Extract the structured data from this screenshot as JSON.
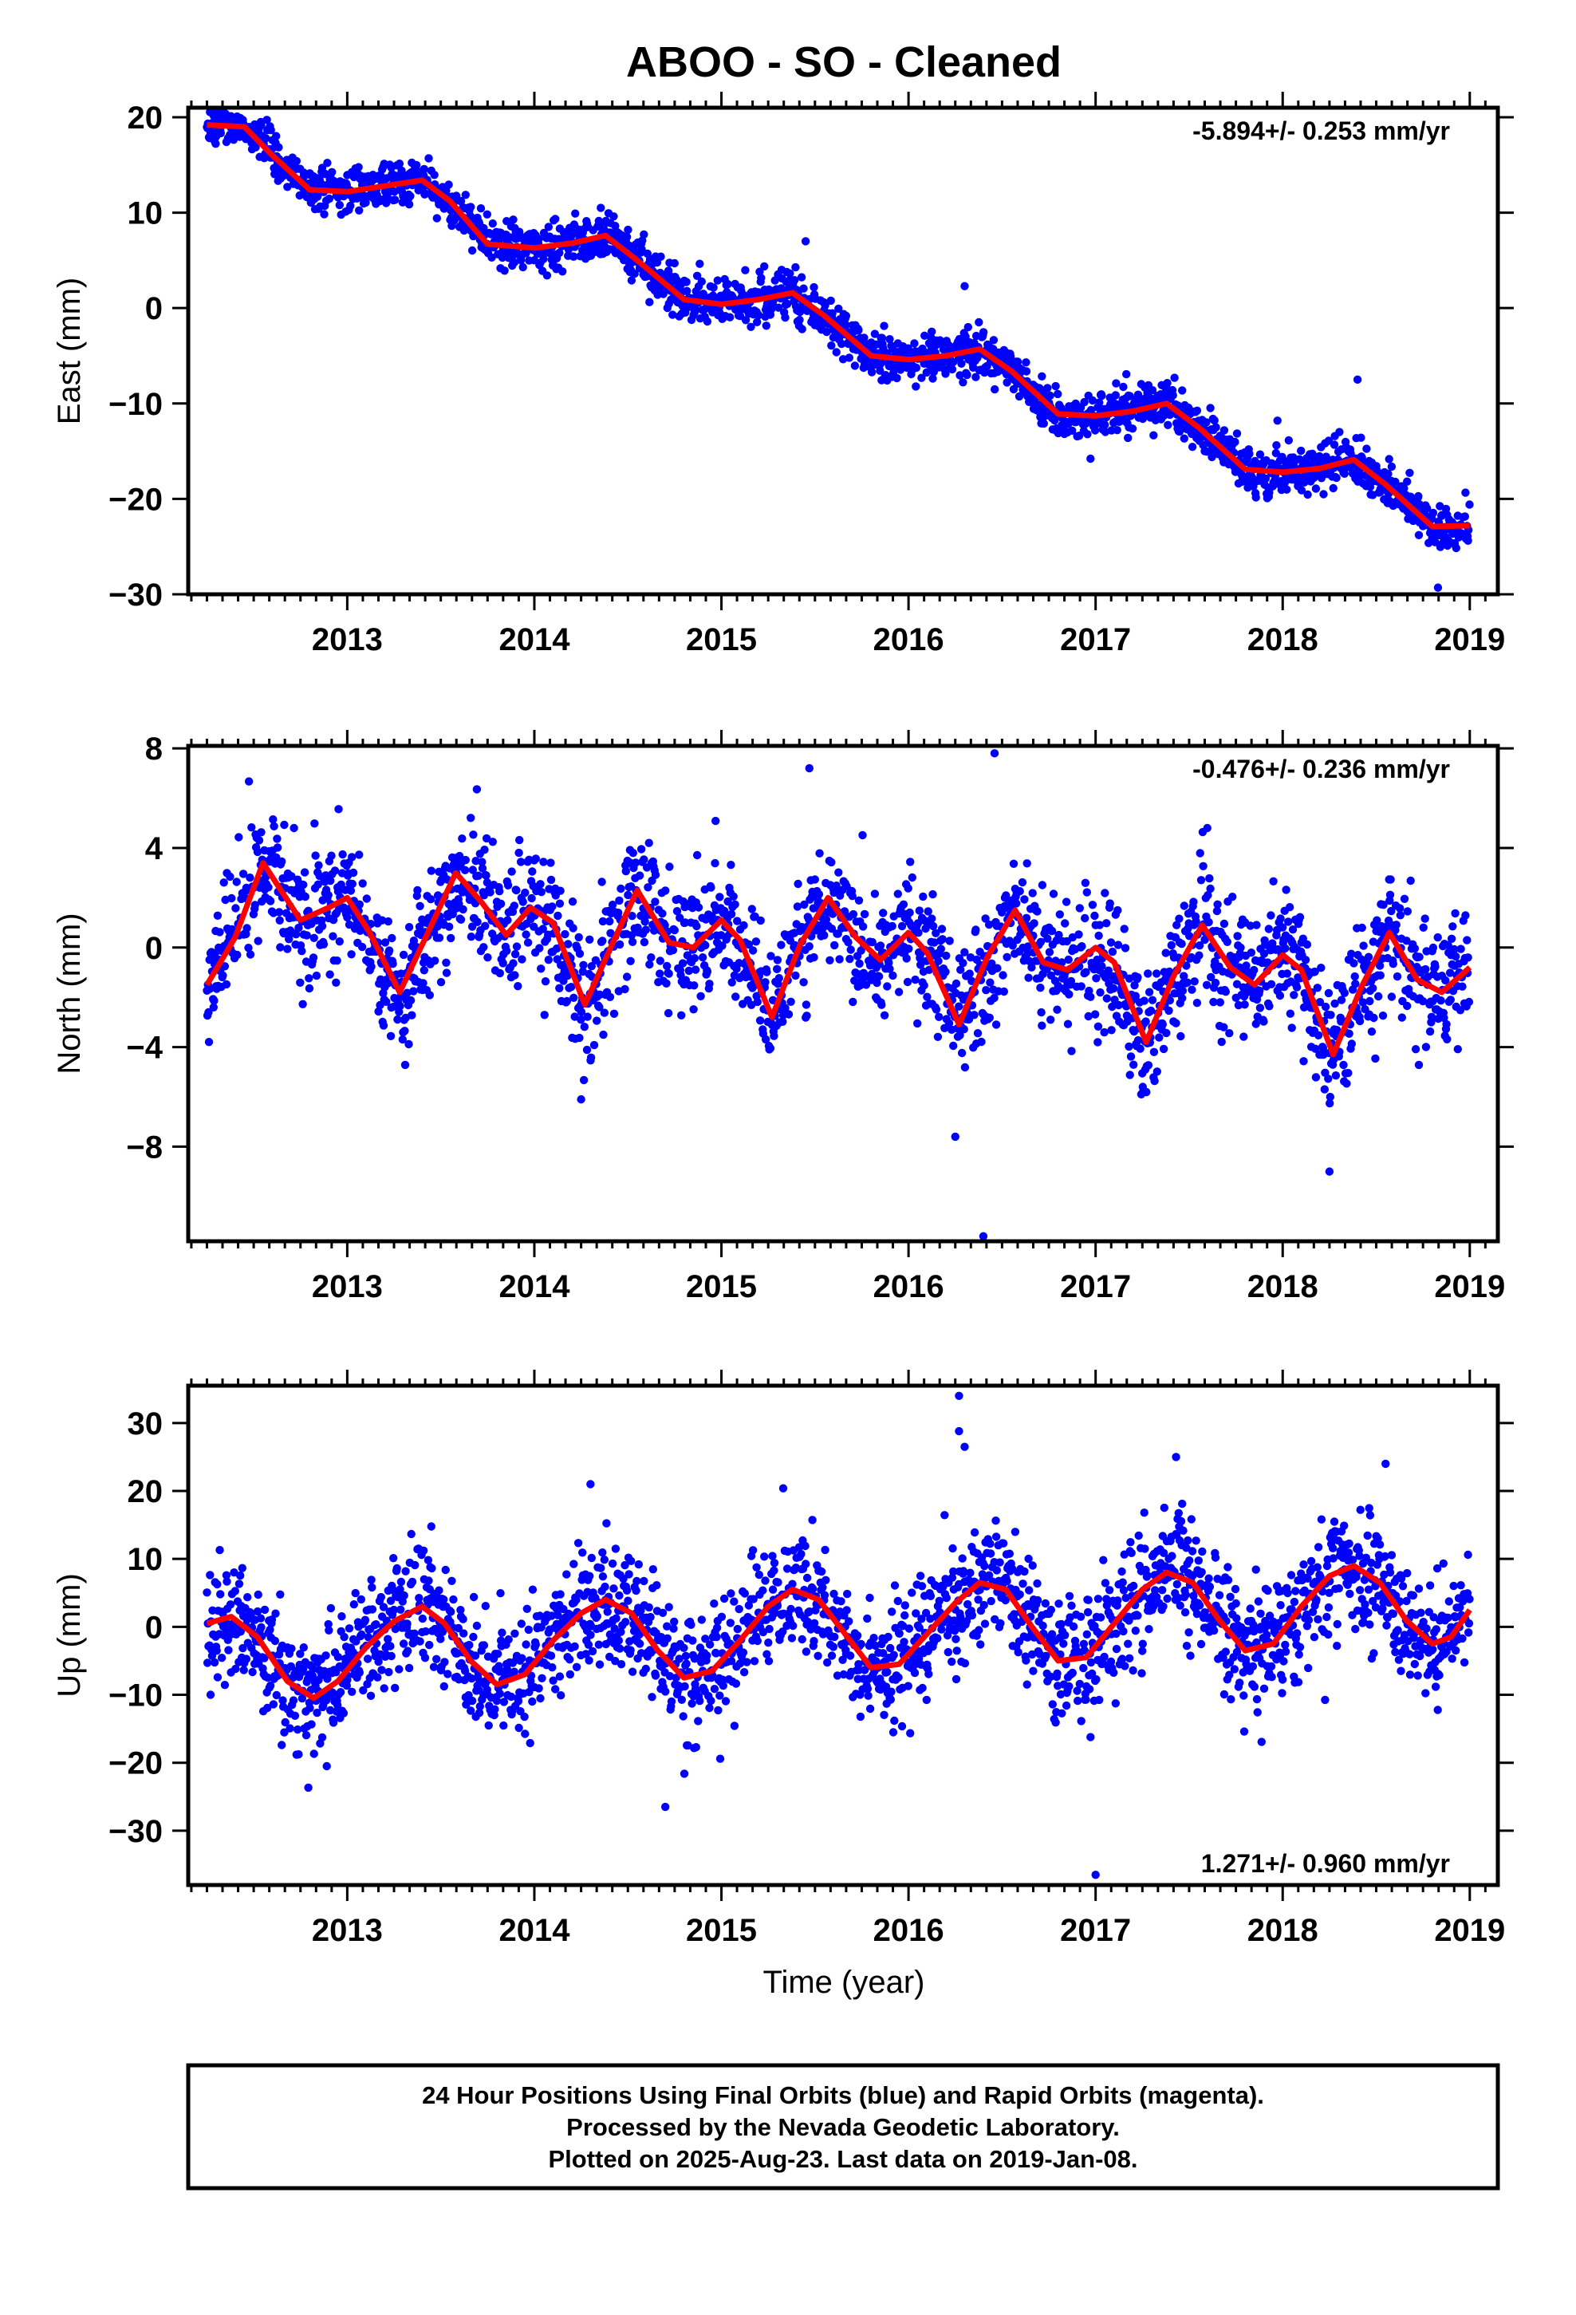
{
  "title": "ABOO  - SO - Cleaned",
  "xlabel": "Time (year)",
  "footer": [
    "24 Hour Positions Using Final Orbits (blue) and Rapid Orbits (magenta).",
    "Processed by the Nevada Geodetic Laboratory.",
    "Plotted on 2025-Aug-23. Last data on 2019-Jan-08."
  ],
  "colors": {
    "points": "#0000ff",
    "model": "#ff0000"
  },
  "chart_data": [
    {
      "type": "scatter",
      "component": "east",
      "ylabel": "East (mm)",
      "rate_label": "-5.894+/- 0.253 mm/yr",
      "rate_position": "top-right",
      "xlim": [
        2012.15,
        2019.15
      ],
      "ylim": [
        -30,
        21
      ],
      "xticks": [
        "2013",
        "2014",
        "2015",
        "2016",
        "2017",
        "2018",
        "2019"
      ],
      "yticks": [
        "20",
        "10",
        "0",
        "−10",
        "−20",
        "−30"
      ],
      "model_x": [
        2012.25,
        2012.45,
        2012.6,
        2012.8,
        2013.0,
        2013.2,
        2013.4,
        2013.55,
        2013.75,
        2014.0,
        2014.2,
        2014.38,
        2014.55,
        2014.8,
        2015.0,
        2015.2,
        2015.38,
        2015.55,
        2015.8,
        2016.0,
        2016.2,
        2016.38,
        2016.55,
        2016.8,
        2017.0,
        2017.2,
        2017.38,
        2017.55,
        2017.8,
        2018.0,
        2018.2,
        2018.38,
        2018.55,
        2018.8,
        2019.0
      ],
      "model_y": [
        19.2,
        19.0,
        16.0,
        12.4,
        12.2,
        12.8,
        13.4,
        11.2,
        6.7,
        6.3,
        6.8,
        7.6,
        5.0,
        0.9,
        0.4,
        0.9,
        1.6,
        -0.8,
        -5.0,
        -5.4,
        -5.0,
        -4.3,
        -6.6,
        -11.1,
        -11.3,
        -10.8,
        -10.0,
        -12.5,
        -16.9,
        -17.2,
        -16.8,
        -15.9,
        -18.5,
        -22.9,
        -22.8
      ],
      "scatter": 1.2,
      "outliers": [
        [
          2018.83,
          -29.3
        ],
        [
          2018.4,
          -7.5
        ],
        [
          2016.3,
          2.3
        ],
        [
          2015.45,
          7.0
        ]
      ]
    },
    {
      "type": "scatter",
      "component": "north",
      "ylabel": "North (mm)",
      "rate_label": "-0.476+/- 0.236 mm/yr",
      "rate_position": "top-right",
      "xlim": [
        2012.15,
        2019.15
      ],
      "ylim": [
        -11.8,
        8.1
      ],
      "xticks": [
        "2013",
        "2014",
        "2015",
        "2016",
        "2017",
        "2018",
        "2019"
      ],
      "yticks": [
        "8",
        "4",
        "0",
        "−4",
        "−8"
      ],
      "model_x": [
        2012.25,
        2012.4,
        2012.55,
        2012.75,
        2012.9,
        2013.0,
        2013.12,
        2013.28,
        2013.45,
        2013.58,
        2013.72,
        2013.85,
        2013.98,
        2014.1,
        2014.27,
        2014.42,
        2014.55,
        2014.72,
        2014.85,
        2015.0,
        2015.1,
        2015.27,
        2015.42,
        2015.57,
        2015.72,
        2015.85,
        2016.0,
        2016.1,
        2016.27,
        2016.42,
        2016.57,
        2016.72,
        2016.85,
        2017.0,
        2017.1,
        2017.27,
        2017.42,
        2017.57,
        2017.72,
        2017.85,
        2018.0,
        2018.1,
        2018.27,
        2018.42,
        2018.57,
        2018.72,
        2018.85,
        2019.0
      ],
      "model_y": [
        -1.5,
        0.4,
        3.4,
        1.1,
        1.6,
        2.0,
        0.6,
        -1.8,
        0.9,
        3.0,
        1.8,
        0.5,
        1.6,
        1.0,
        -2.3,
        0.2,
        2.3,
        0.2,
        0.0,
        1.1,
        0.3,
        -2.8,
        0.1,
        2.0,
        0.4,
        -0.5,
        0.6,
        -0.2,
        -3.1,
        -0.4,
        1.5,
        -0.6,
        -0.9,
        0.0,
        -0.6,
        -3.8,
        -1.1,
        0.9,
        -0.8,
        -1.5,
        -0.3,
        -0.9,
        -4.3,
        -1.6,
        0.6,
        -1.3,
        -1.8,
        -0.8
      ],
      "scatter": 1.3,
      "outliers": [
        [
          2016.4,
          -11.6
        ],
        [
          2016.46,
          7.8
        ],
        [
          2015.47,
          7.2
        ],
        [
          2018.25,
          -9.0
        ],
        [
          2016.25,
          -7.6
        ],
        [
          2014.25,
          -6.1
        ]
      ]
    },
    {
      "type": "scatter",
      "component": "up",
      "ylabel": "Up (mm)",
      "rate_label": "1.271+/- 0.960 mm/yr",
      "rate_position": "bottom-right",
      "xlim": [
        2012.15,
        2019.15
      ],
      "ylim": [
        -38,
        35.5
      ],
      "xticks": [
        "2013",
        "2014",
        "2015",
        "2016",
        "2017",
        "2018",
        "2019"
      ],
      "yticks": [
        "30",
        "20",
        "10",
        "0",
        "−10",
        "−20",
        "−30"
      ],
      "model_x": [
        2012.25,
        2012.38,
        2012.52,
        2012.68,
        2012.82,
        2012.95,
        2013.1,
        2013.25,
        2013.4,
        2013.52,
        2013.66,
        2013.8,
        2013.95,
        2014.1,
        2014.25,
        2014.38,
        2014.52,
        2014.66,
        2014.8,
        2014.95,
        2015.1,
        2015.25,
        2015.38,
        2015.52,
        2015.66,
        2015.8,
        2015.95,
        2016.1,
        2016.25,
        2016.38,
        2016.52,
        2016.66,
        2016.8,
        2016.95,
        2017.1,
        2017.25,
        2017.38,
        2017.52,
        2017.66,
        2017.8,
        2017.95,
        2018.1,
        2018.25,
        2018.38,
        2018.52,
        2018.66,
        2018.8,
        2018.9,
        2019.0
      ],
      "model_y": [
        0.5,
        1.5,
        -1.5,
        -8.0,
        -10.5,
        -8.0,
        -3.0,
        0.8,
        3.0,
        0.5,
        -5.0,
        -8.5,
        -7.0,
        -2.0,
        2.0,
        4.0,
        2.0,
        -3.5,
        -7.5,
        -6.5,
        -2.0,
        3.0,
        5.5,
        4.0,
        -1.0,
        -6.0,
        -5.5,
        -1.0,
        3.5,
        6.5,
        5.5,
        0.0,
        -5.0,
        -4.5,
        0.5,
        5.5,
        8.0,
        6.5,
        1.0,
        -3.5,
        -2.5,
        3.0,
        7.5,
        9.0,
        6.5,
        1.0,
        -2.5,
        -1.5,
        2.5
      ],
      "scatter": 4.5,
      "outliers": [
        [
          2016.27,
          34.0
        ],
        [
          2016.27,
          28.8
        ],
        [
          2016.3,
          26.5
        ],
        [
          2017.0,
          -36.5
        ],
        [
          2014.7,
          -26.5
        ],
        [
          2014.3,
          21.0
        ],
        [
          2017.43,
          25.0
        ],
        [
          2018.55,
          24.0
        ]
      ]
    }
  ]
}
